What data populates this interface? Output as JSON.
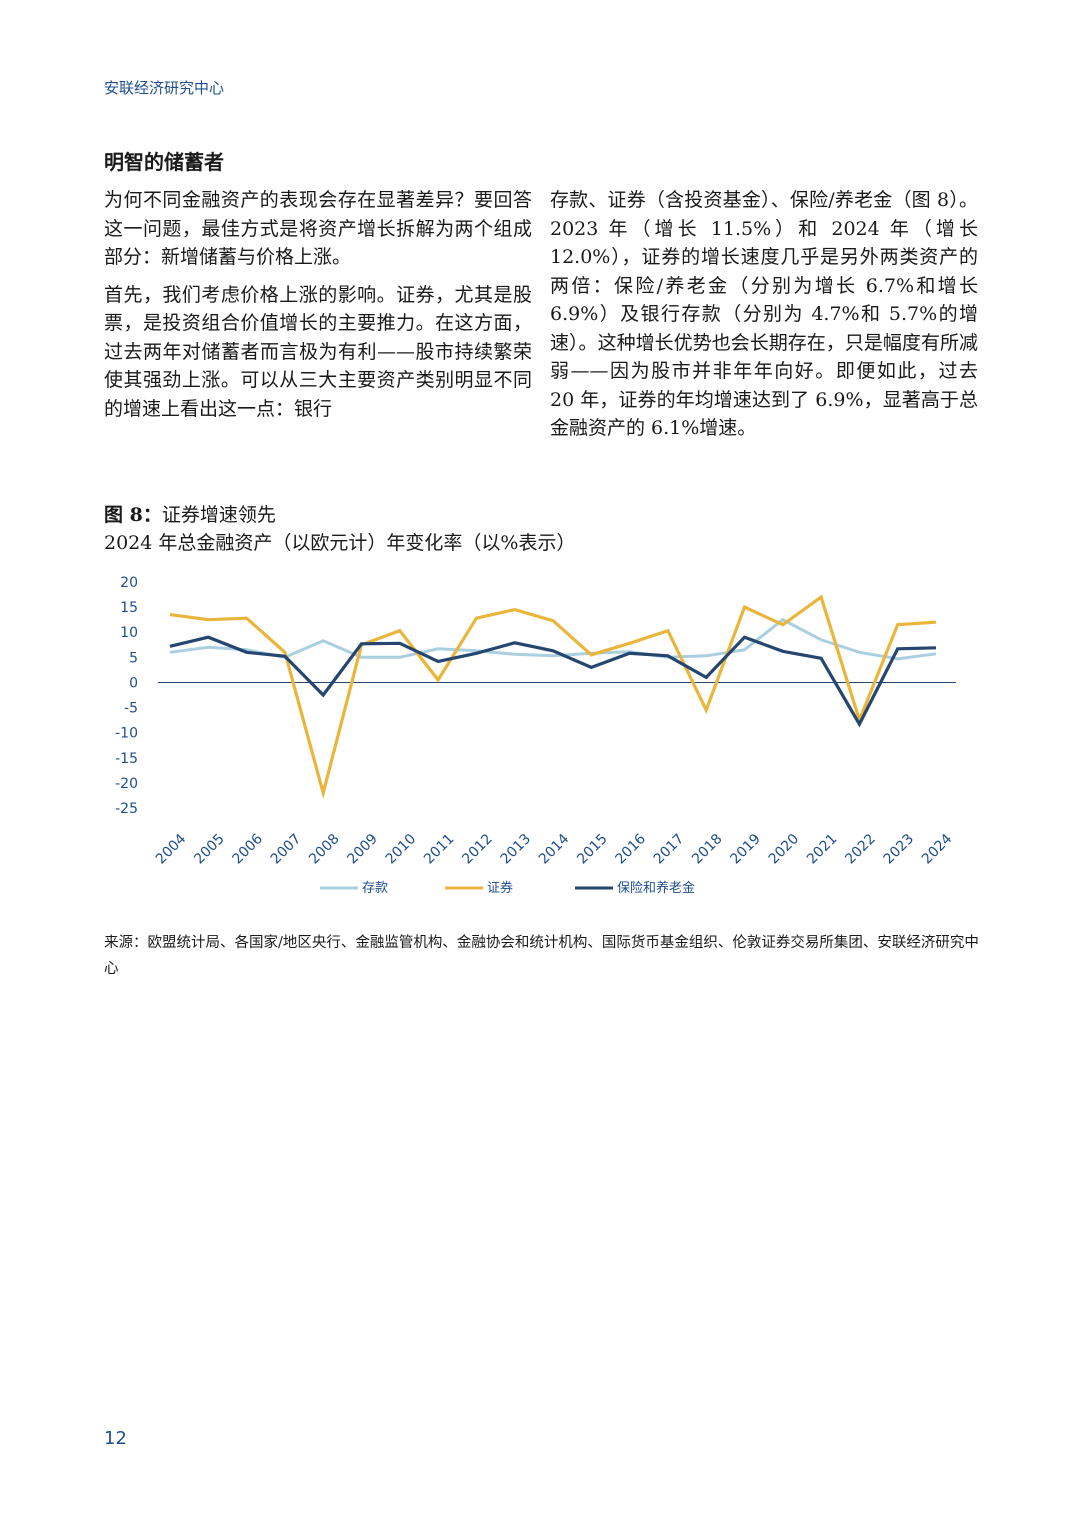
{
  "header": "安联经济研究中心",
  "section_title": "明智的储蓄者",
  "col_left": [
    "为何不同金融资产的表现会存在显著差异？要回答这一问题，最佳方式是将资产增长拆解为两个组成部分：新增储蓄与价格上涨。",
    "首先，我们考虑价格上涨的影响。证券，尤其是股票，是投资组合价值增长的主要推力。在这方面，过去两年对储蓄者而言极为有利——股市持续繁荣使其强劲上涨。可以从三大主要资产类别明显不同的增速上看出这一点：银行"
  ],
  "col_right": [
    "存款、证券（含投资基金）、保险/养老金（图 8）。2023 年（增长 11.5%）和 2024 年（增长 12.0%），证券的增长速度几乎是另外两类资产的两倍：保险/养老金（分别为增长 6.7%和增长 6.9%）及银行存款（分别为 4.7%和 5.7%的增速）。这种增长优势也会长期存在，只是幅度有所减弱——因为股市并非年年向好。即便如此，过去 20 年，证券的年均增速达到了 6.9%，显著高于总金融资产的 6.1%增速。"
  ],
  "figure": {
    "label": "图 8：",
    "title": "证券增速领先",
    "subtitle": "2024 年总金融资产（以欧元计）年变化率（以%表示）"
  },
  "chart_data": {
    "type": "line",
    "x": [
      "2004",
      "2005",
      "2006",
      "2007",
      "2008",
      "2009",
      "2010",
      "2011",
      "2012",
      "2013",
      "2014",
      "2015",
      "2016",
      "2017",
      "2018",
      "2019",
      "2020",
      "2021",
      "2022",
      "2023",
      "2024"
    ],
    "yticks": [
      20,
      15,
      10,
      5,
      0,
      -5,
      -10,
      -15,
      -20,
      -25
    ],
    "ylim": [
      -25,
      20
    ],
    "series": [
      {
        "name": "存款",
        "color": "#a9cfe0",
        "values": [
          6,
          7,
          6.5,
          5,
          8.3,
          5,
          5,
          6.7,
          6.3,
          5.6,
          5.3,
          5.8,
          6.1,
          5,
          5.3,
          6.5,
          12.5,
          8.5,
          6,
          4.7,
          5.7
        ]
      },
      {
        "name": "证券",
        "color": "#eab53b",
        "values": [
          13.5,
          12.5,
          12.8,
          6,
          -22,
          7.5,
          10.3,
          0.5,
          12.8,
          14.5,
          12.3,
          5.5,
          7.8,
          10.3,
          -5.5,
          15,
          11.5,
          17,
          -7.5,
          11.5,
          12
        ]
      },
      {
        "name": "保险和养老金",
        "color": "#24466f",
        "values": [
          7.2,
          9,
          6,
          5.2,
          -2.5,
          7.7,
          7.8,
          4.2,
          5.8,
          7.9,
          6.3,
          3,
          5.8,
          5.3,
          1,
          9,
          6.2,
          4.8,
          -8.3,
          6.7,
          6.9
        ]
      }
    ]
  },
  "source": "来源：欧盟统计局、各国家/地区央行、金融监管机构、金融协会和统计机构、国际货币基金组织、伦敦证券交易所集团、安联经济研究中心",
  "page_number": "12"
}
